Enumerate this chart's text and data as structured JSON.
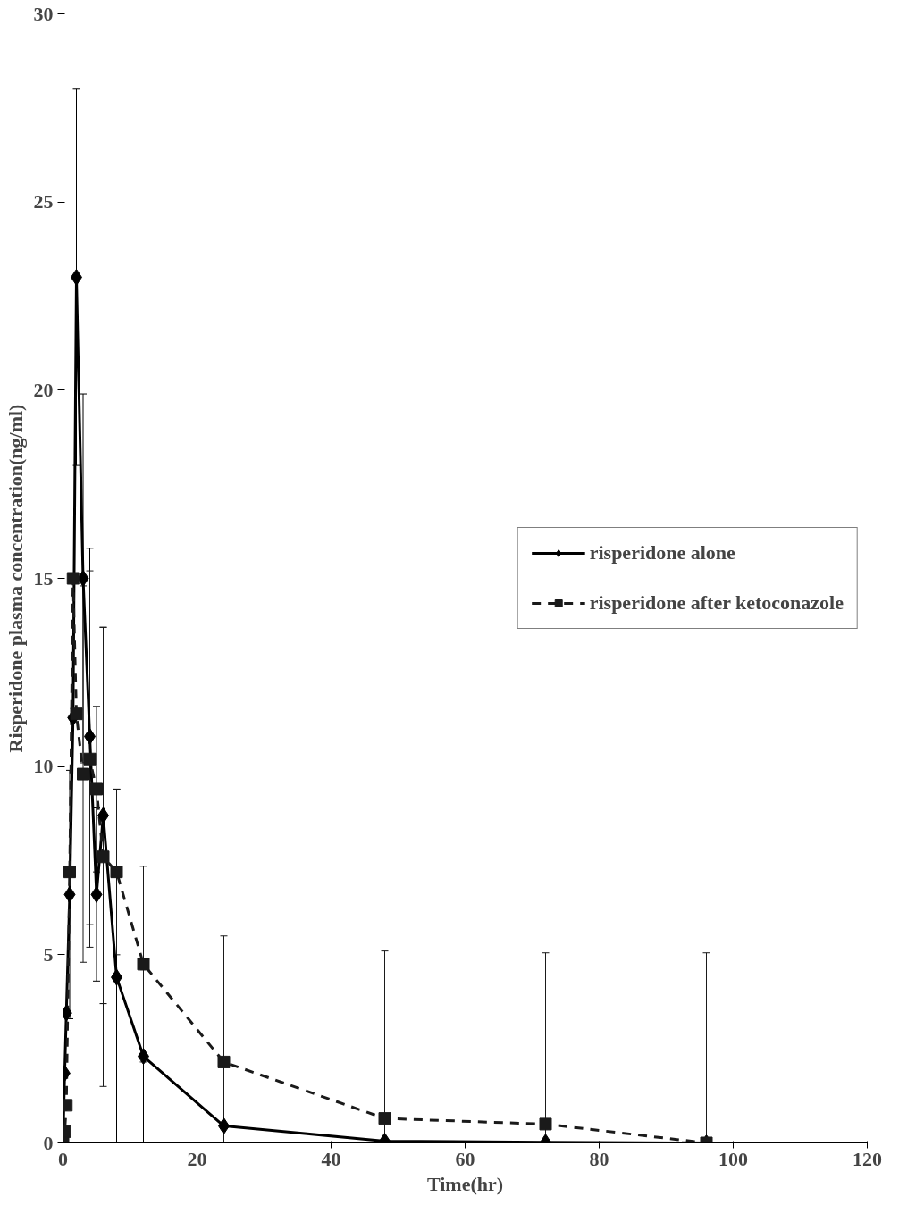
{
  "chart_data": {
    "type": "line",
    "xlabel": "Time(hr)",
    "ylabel": "Risperidone plasma concentration(ng/ml)",
    "xlim": [
      0,
      120
    ],
    "xticks": [
      0,
      20,
      40,
      60,
      80,
      100,
      120
    ],
    "ylim": [
      0,
      30
    ],
    "yticks": [
      0,
      5,
      10,
      15,
      20,
      25,
      30
    ],
    "grid": false,
    "legend": "right",
    "series": [
      {
        "name": "risperidone alone",
        "color": "#000000",
        "marker": "diamond",
        "line_style": "solid",
        "x": [
          0,
          0.25,
          0.5,
          1,
          1.5,
          2,
          3,
          4,
          5,
          6,
          8,
          12,
          24,
          48,
          72,
          96
        ],
        "values": [
          0,
          1.85,
          3.45,
          6.6,
          11.3,
          23.0,
          15.0,
          10.8,
          6.6,
          8.7,
          4.4,
          2.3,
          0.45,
          0.05,
          0.02,
          0
        ],
        "errors": [
          null,
          null,
          null,
          3.3,
          null,
          5.0,
          4.9,
          5.0,
          2.3,
          5.0,
          5.0,
          2.3,
          null,
          null,
          null,
          null
        ]
      },
      {
        "name": "risperidone after ketoconazole",
        "color": "#1a1a1a",
        "marker": "square",
        "line_style": "dashed",
        "x": [
          0,
          0.25,
          0.5,
          1,
          1.5,
          2,
          3,
          4,
          5,
          6,
          8,
          12,
          24,
          48,
          72,
          96
        ],
        "values": [
          0,
          0.3,
          1.0,
          7.2,
          15.0,
          11.4,
          9.8,
          10.2,
          9.4,
          7.6,
          7.2,
          4.75,
          2.15,
          0.65,
          0.5,
          0
        ],
        "errors": [
          null,
          null,
          null,
          null,
          null,
          null,
          5.0,
          5.0,
          2.2,
          6.1,
          2.2,
          2.6,
          3.35,
          4.45,
          4.55,
          5.05
        ]
      }
    ]
  }
}
